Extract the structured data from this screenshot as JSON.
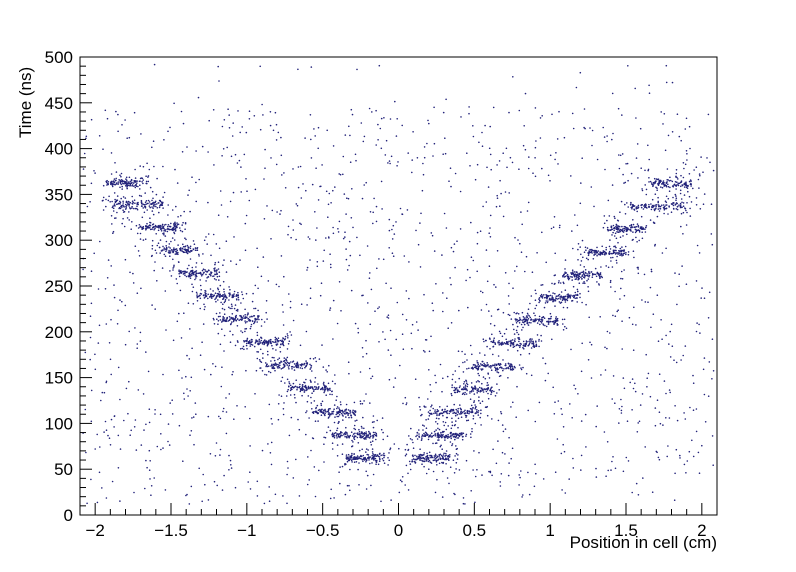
{
  "chart_data": {
    "type": "scatter",
    "title": "",
    "xlabel": "Position in cell (cm)",
    "ylabel": "Time (ns)",
    "xlim": [
      -2.1,
      2.1
    ],
    "ylim": [
      0,
      500
    ],
    "xticks": [
      -2,
      -1.5,
      -1,
      -0.5,
      0,
      0.5,
      1,
      1.5,
      2
    ],
    "yticks": [
      0,
      50,
      100,
      150,
      200,
      250,
      300,
      350,
      400,
      450,
      500
    ],
    "x_minor_step": 0.1,
    "y_minor_step": 10,
    "grid": false,
    "legend": "none",
    "frame_color": "#000000",
    "background_color": "#ffffff",
    "marker_color": "#22227a",
    "marker_radius": 0.8,
    "clusters": [
      {
        "x0": -1.93,
        "x1": -1.68,
        "y": 363,
        "n": 130
      },
      {
        "x0": -1.88,
        "x1": -1.55,
        "y": 339,
        "n": 140
      },
      {
        "x0": -1.72,
        "x1": -1.46,
        "y": 314,
        "n": 130
      },
      {
        "x0": -1.57,
        "x1": -1.32,
        "y": 289,
        "n": 130
      },
      {
        "x0": -1.45,
        "x1": -1.19,
        "y": 264,
        "n": 130
      },
      {
        "x0": -1.33,
        "x1": -1.05,
        "y": 239,
        "n": 130
      },
      {
        "x0": -1.17,
        "x1": -0.92,
        "y": 214,
        "n": 130
      },
      {
        "x0": -1.02,
        "x1": -0.76,
        "y": 189,
        "n": 130
      },
      {
        "x0": -0.88,
        "x1": -0.6,
        "y": 164,
        "n": 130
      },
      {
        "x0": -0.73,
        "x1": -0.45,
        "y": 139,
        "n": 130
      },
      {
        "x0": -0.57,
        "x1": -0.28,
        "y": 112,
        "n": 140
      },
      {
        "x0": -0.44,
        "x1": -0.14,
        "y": 87,
        "n": 150
      },
      {
        "x0": -0.34,
        "x1": -0.09,
        "y": 62,
        "n": 150
      },
      {
        "x0": 0.09,
        "x1": 0.34,
        "y": 62,
        "n": 150
      },
      {
        "x0": 0.12,
        "x1": 0.43,
        "y": 87,
        "n": 150
      },
      {
        "x0": 0.2,
        "x1": 0.53,
        "y": 112,
        "n": 140
      },
      {
        "x0": 0.34,
        "x1": 0.62,
        "y": 137,
        "n": 130
      },
      {
        "x0": 0.48,
        "x1": 0.77,
        "y": 162,
        "n": 130
      },
      {
        "x0": 0.62,
        "x1": 0.91,
        "y": 187,
        "n": 130
      },
      {
        "x0": 0.77,
        "x1": 1.05,
        "y": 212,
        "n": 130
      },
      {
        "x0": 0.93,
        "x1": 1.19,
        "y": 237,
        "n": 130
      },
      {
        "x0": 1.08,
        "x1": 1.34,
        "y": 262,
        "n": 130
      },
      {
        "x0": 1.23,
        "x1": 1.49,
        "y": 287,
        "n": 130
      },
      {
        "x0": 1.4,
        "x1": 1.64,
        "y": 312,
        "n": 130
      },
      {
        "x0": 1.53,
        "x1": 1.88,
        "y": 337,
        "n": 140
      },
      {
        "x0": 1.66,
        "x1": 1.93,
        "y": 362,
        "n": 130
      }
    ],
    "cluster_tight_sigma_ns": 2.2,
    "cluster_loose_sigma_ns": 8,
    "cluster_loose_fraction": 0.3,
    "noise": [
      {
        "n": 1500,
        "x0": -2.08,
        "x1": 2.08,
        "y0": 12,
        "y1": 446
      },
      {
        "n": 25,
        "x0": -2.0,
        "x1": 2.0,
        "y0": 446,
        "y1": 495
      }
    ]
  }
}
